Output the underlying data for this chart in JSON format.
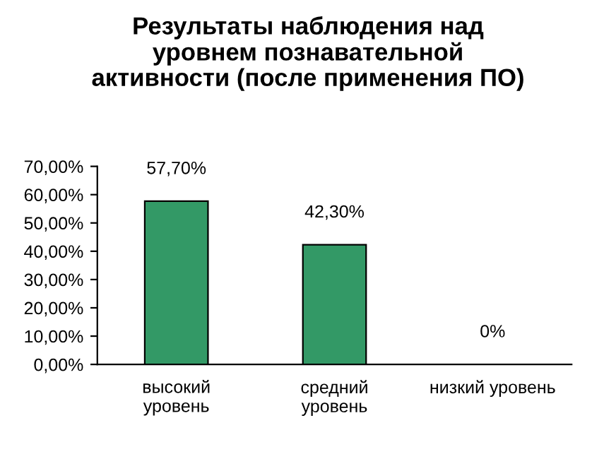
{
  "chart_data": {
    "type": "bar",
    "title": "Результаты наблюдения над\nуровнем познавательной\nактивности (после применения ПО)",
    "categories": [
      "высокий\nуровень",
      "средний\nуровень",
      "низкий уровень"
    ],
    "values": [
      57.7,
      42.3,
      0
    ],
    "value_labels": [
      "57,70%",
      "42,30%",
      "0%"
    ],
    "color": "#339966",
    "ylim": [
      0,
      70
    ],
    "yticks": [
      {
        "value": 0,
        "label": "0,00%"
      },
      {
        "value": 10,
        "label": "10,00%"
      },
      {
        "value": 20,
        "label": "20,00%"
      },
      {
        "value": 30,
        "label": "30,00%"
      },
      {
        "value": 40,
        "label": "40,00%"
      },
      {
        "value": 50,
        "label": "50,00%"
      },
      {
        "value": 60,
        "label": "60,00%"
      },
      {
        "value": 70,
        "label": "70,00%"
      }
    ],
    "grid": false,
    "legend": false
  }
}
